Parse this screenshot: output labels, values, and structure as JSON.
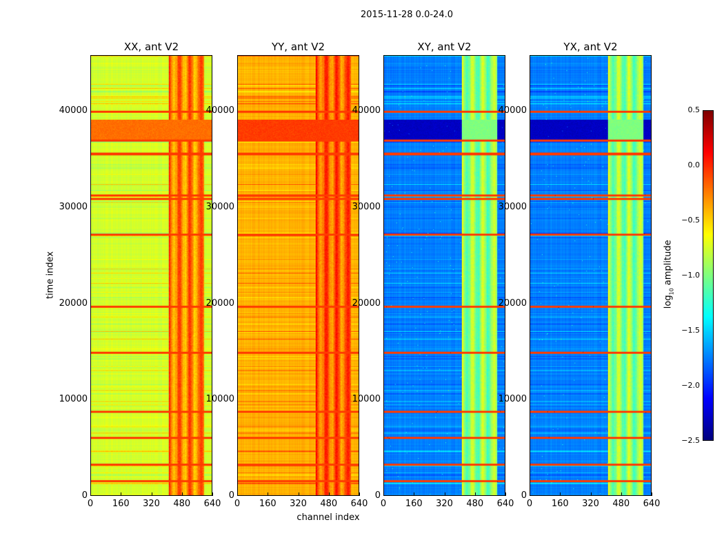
{
  "chart_data": {
    "type": "heatmap",
    "title": "2015-11-28 0.0-24.0",
    "xlabel": "channel index",
    "ylabel": "time index",
    "xlim": [
      0,
      640
    ],
    "ylim": [
      0,
      45800
    ],
    "xticks": [
      "0",
      "160",
      "320",
      "480",
      "640"
    ],
    "xtick_values": [
      0,
      160,
      320,
      480,
      640
    ],
    "yticks": [
      "0",
      "10000",
      "20000",
      "30000",
      "40000"
    ],
    "ytick_values": [
      0,
      10000,
      20000,
      30000,
      40000
    ],
    "panels": [
      {
        "title": "XX, ant V2",
        "base": -0.75,
        "rfi_band_level": -0.25,
        "dark_band_level": -0.2
      },
      {
        "title": "YY, ant V2",
        "base": -0.4,
        "rfi_band_level": -0.15,
        "dark_band_level": -0.05
      },
      {
        "title": "XY, ant V2",
        "base": -1.75,
        "rfi_band_level": -0.95,
        "dark_band_level": -2.3
      },
      {
        "title": "YX, ant V2",
        "base": -1.75,
        "rfi_band_level": -0.95,
        "dark_band_level": -2.3
      }
    ],
    "rfi_channel_range": [
      410,
      600
    ],
    "dark_time_range": [
      37000,
      39200
    ],
    "bright_time_rows": [
      1500,
      3200,
      6000,
      8700,
      14900,
      19700,
      27200,
      30900,
      31300,
      35600,
      37000,
      40000
    ],
    "colorbar": {
      "label": "log10 amplitude",
      "label_main": "log",
      "label_sub": "10",
      "label_rest": " amplitude",
      "range": [
        -2.5,
        0.5
      ],
      "ticks": [
        "0.5",
        "0.0",
        "−0.5",
        "−1.0",
        "−1.5",
        "−2.0",
        "−2.5"
      ],
      "tick_values": [
        0.5,
        0.0,
        -0.5,
        -1.0,
        -1.5,
        -2.0,
        -2.5
      ],
      "colormap": "jet"
    }
  }
}
